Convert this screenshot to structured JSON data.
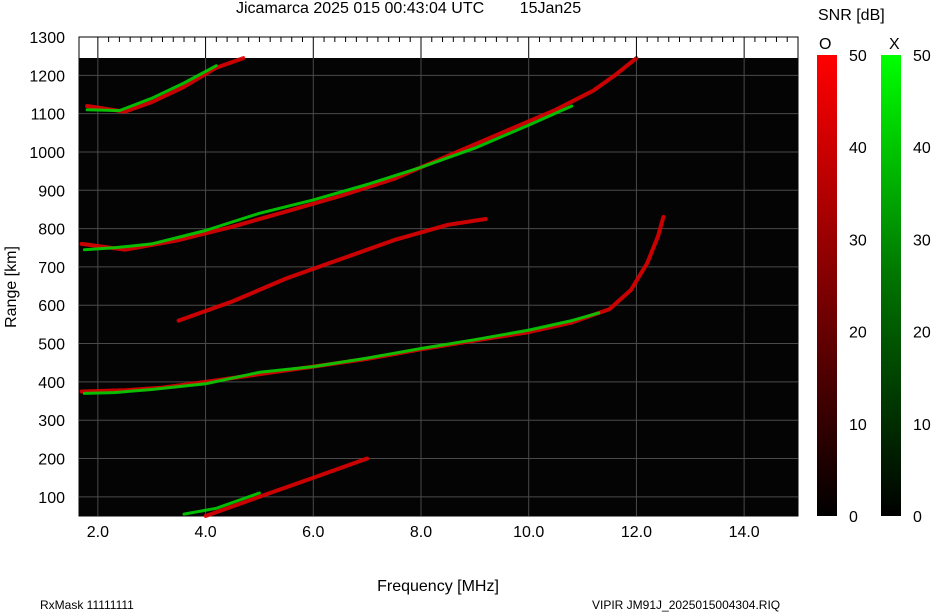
{
  "header": {
    "title": "Jicamarca 2025 015 00:43:04 UTC",
    "date": "15Jan25"
  },
  "footer": {
    "rx_mask": "RxMask 11111111",
    "file": "VIPIR  JM91J_2025015004304.RIQ"
  },
  "chart_data": {
    "type": "heatmap",
    "title": "Jicamarca 2025 015 00:43:04 UTC",
    "xlabel": "Frequency [MHz]",
    "ylabel": "Range [km]",
    "xlim": [
      1.65,
      15.0
    ],
    "ylim": [
      50,
      1300
    ],
    "x_ticks": [
      2.0,
      4.0,
      6.0,
      8.0,
      10.0,
      12.0,
      14.0
    ],
    "x_tick_labels": [
      "2.0",
      "4.0",
      "6.0",
      "8.0",
      "10.0",
      "12.0",
      "14.0"
    ],
    "y_ticks": [
      100,
      200,
      300,
      400,
      500,
      600,
      700,
      800,
      900,
      1000,
      1100,
      1200,
      1300
    ],
    "y_tick_labels": [
      "100",
      "200",
      "300",
      "400",
      "500",
      "600",
      "700",
      "800",
      "900",
      "1000",
      "1100",
      "1200",
      "1300"
    ],
    "data_top_range_km": 1245,
    "grid": true,
    "colorbars": {
      "title": "SNR [dB]",
      "range": [
        0,
        50
      ],
      "ticks": [
        0,
        10,
        20,
        30,
        40,
        50
      ],
      "o_mode": {
        "label": "O",
        "color": "#ff0000"
      },
      "x_mode": {
        "label": "X",
        "color": "#00ff00"
      }
    },
    "traces": [
      {
        "name": "O",
        "points": [
          [
            1.7,
            375
          ],
          [
            2.5,
            378
          ],
          [
            3.2,
            385
          ],
          [
            4.0,
            400
          ],
          [
            5.0,
            420
          ],
          [
            6.0,
            440
          ],
          [
            7.0,
            460
          ],
          [
            8.0,
            485
          ],
          [
            9.0,
            508
          ],
          [
            10.0,
            530
          ],
          [
            10.8,
            555
          ],
          [
            11.5,
            590
          ],
          [
            11.9,
            640
          ],
          [
            12.2,
            710
          ],
          [
            12.4,
            780
          ],
          [
            12.5,
            830
          ]
        ]
      },
      {
        "name": "X",
        "points": [
          [
            1.75,
            370
          ],
          [
            2.3,
            372
          ],
          [
            3.0,
            380
          ],
          [
            4.0,
            395
          ],
          [
            5.0,
            425
          ],
          [
            6.0,
            440
          ],
          [
            7.0,
            462
          ],
          [
            8.0,
            487
          ],
          [
            9.0,
            510
          ],
          [
            10.0,
            535
          ],
          [
            10.8,
            560
          ],
          [
            11.3,
            580
          ]
        ]
      },
      {
        "name": "O",
        "points": [
          [
            1.7,
            760
          ],
          [
            2.5,
            745
          ],
          [
            3.5,
            770
          ],
          [
            4.5,
            805
          ],
          [
            5.5,
            845
          ],
          [
            6.5,
            885
          ],
          [
            7.5,
            930
          ],
          [
            8.5,
            990
          ],
          [
            9.5,
            1050
          ],
          [
            10.5,
            1110
          ],
          [
            11.2,
            1160
          ],
          [
            11.6,
            1200
          ],
          [
            12.0,
            1245
          ]
        ]
      },
      {
        "name": "X",
        "points": [
          [
            1.75,
            745
          ],
          [
            2.3,
            750
          ],
          [
            3.0,
            760
          ],
          [
            4.0,
            795
          ],
          [
            5.0,
            840
          ],
          [
            6.0,
            875
          ],
          [
            7.0,
            915
          ],
          [
            8.0,
            960
          ],
          [
            9.0,
            1010
          ],
          [
            10.0,
            1070
          ],
          [
            10.8,
            1120
          ]
        ]
      },
      {
        "name": "O",
        "points": [
          [
            1.8,
            1120
          ],
          [
            2.5,
            1105
          ],
          [
            3.0,
            1130
          ],
          [
            3.6,
            1170
          ],
          [
            4.2,
            1220
          ],
          [
            4.7,
            1245
          ]
        ]
      },
      {
        "name": "X",
        "points": [
          [
            1.8,
            1110
          ],
          [
            2.4,
            1108
          ],
          [
            3.0,
            1140
          ],
          [
            3.6,
            1180
          ],
          [
            4.2,
            1225
          ]
        ]
      },
      {
        "name": "O",
        "points": [
          [
            3.5,
            560
          ],
          [
            4.5,
            610
          ],
          [
            5.5,
            670
          ],
          [
            6.5,
            720
          ],
          [
            7.5,
            770
          ],
          [
            8.5,
            810
          ],
          [
            9.2,
            825
          ]
        ]
      },
      {
        "name": "O",
        "points": [
          [
            4.0,
            50
          ],
          [
            5.0,
            100
          ],
          [
            6.0,
            150
          ],
          [
            7.0,
            200
          ]
        ]
      },
      {
        "name": "X",
        "points": [
          [
            3.6,
            55
          ],
          [
            4.2,
            70
          ],
          [
            5.0,
            110
          ]
        ]
      }
    ]
  }
}
